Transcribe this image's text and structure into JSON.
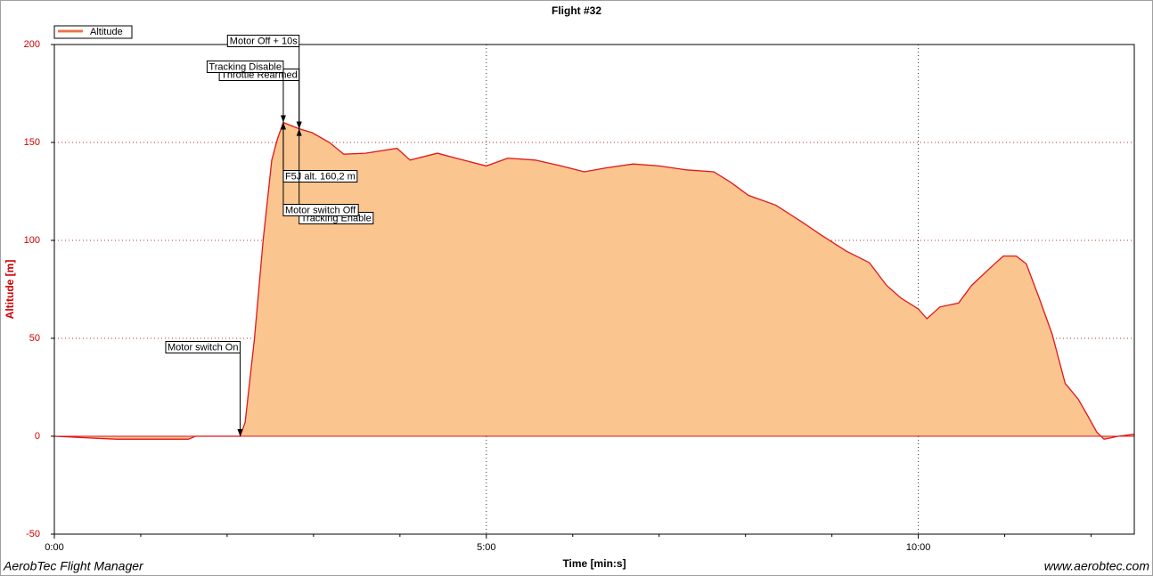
{
  "chart_data": {
    "type": "area",
    "title": "Flight #32",
    "x_label": "Time [min:s]",
    "y_label": "Altitude [m]",
    "footer_left": "AerobTec Flight Manager",
    "footer_right": "www.aerobtec.com",
    "legend": "top-left",
    "grid": true,
    "xlim": [
      0,
      750
    ],
    "xticks": [
      {
        "value": 0,
        "label": "0:00"
      },
      {
        "value": 300,
        "label": "5:00"
      },
      {
        "value": 600,
        "label": "10:00"
      }
    ],
    "xminor_ticks": [
      60,
      120,
      180,
      240,
      360,
      420,
      480,
      540,
      660,
      720
    ],
    "ylim": [
      -50,
      200
    ],
    "yticks": [
      200,
      150,
      100,
      50,
      0,
      -50
    ],
    "x": [
      0,
      43,
      93,
      98,
      129,
      132.5,
      139,
      145,
      151,
      155,
      159,
      170,
      179,
      191,
      201,
      216,
      238,
      247,
      266,
      284,
      300,
      315,
      334,
      352,
      368,
      383,
      402,
      420,
      439,
      458,
      470,
      482,
      501,
      520,
      532,
      550,
      566,
      578,
      588,
      600,
      606,
      615,
      628,
      637,
      650,
      659,
      668,
      675,
      684,
      693,
      702,
      711,
      718,
      724,
      729,
      739,
      750
    ],
    "series": [
      {
        "name": "Altitude",
        "color": "#e0161a",
        "fill": "#fbc590",
        "values": [
          0,
          -1.5,
          -1.5,
          0,
          0,
          7,
          50,
          100,
          141,
          152,
          160.2,
          157,
          155,
          150,
          144,
          144.5,
          147,
          141,
          144.5,
          141,
          138,
          142,
          141,
          138,
          135,
          137,
          139,
          138,
          136,
          135,
          129.5,
          123,
          118,
          109,
          103,
          94.5,
          88.6,
          77,
          70.5,
          65,
          60,
          66,
          68,
          77,
          86,
          92,
          92,
          88,
          70.5,
          52,
          27,
          19,
          10,
          2,
          -1.5,
          0,
          1
        ]
      }
    ],
    "annotations": [
      {
        "text": "Motor switch On",
        "x": 129
      },
      {
        "text": "Throttle Rearmed",
        "x": 170
      },
      {
        "text": "Tracking Disable",
        "x": 159
      },
      {
        "text": "Motor Off + 10s",
        "x": 170
      },
      {
        "text": "F5J alt. 160,2 m",
        "x": 159
      },
      {
        "text": "Tracking Enable",
        "x": 170
      },
      {
        "text": "Motor switch Off",
        "x": 159
      }
    ]
  }
}
